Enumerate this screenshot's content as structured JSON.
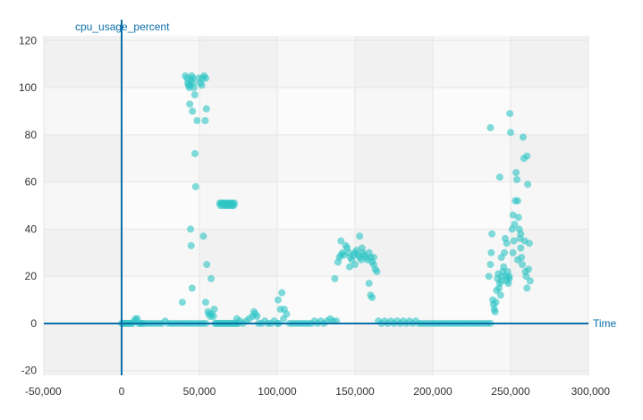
{
  "chart_data": {
    "type": "scatter",
    "title": "",
    "xlabel": "Time",
    "ylabel": "cpu_usage_percent",
    "xlim": [
      -50000,
      300000
    ],
    "ylim": [
      -22,
      122
    ],
    "xticks": [
      -50000,
      0,
      50000,
      100000,
      150000,
      200000,
      250000,
      300000
    ],
    "xtick_labels": [
      "-50,000",
      "0",
      "50,000",
      "100,000",
      "150,000",
      "200,000",
      "250,000",
      "300,000"
    ],
    "yticks": [
      -20,
      0,
      20,
      40,
      60,
      80,
      100,
      120
    ],
    "ytick_labels": [
      "-20",
      "0",
      "20",
      "40",
      "60",
      "80",
      "100",
      "120"
    ],
    "grid": true,
    "legend": "none",
    "series": [
      {
        "marker_color": "#2ec4c4",
        "points": [
          [
            0,
            0
          ],
          [
            1000,
            0
          ],
          [
            2000,
            0
          ],
          [
            3000,
            0
          ],
          [
            4000,
            0
          ],
          [
            5000,
            0
          ],
          [
            6000,
            0
          ],
          [
            7000,
            0
          ],
          [
            8000,
            1
          ],
          [
            9000,
            2
          ],
          [
            10000,
            2
          ],
          [
            11000,
            0
          ],
          [
            12000,
            0
          ],
          [
            13000,
            0
          ],
          [
            14000,
            0
          ],
          [
            16000,
            0
          ],
          [
            18000,
            0
          ],
          [
            20000,
            0
          ],
          [
            22000,
            0
          ],
          [
            24000,
            0
          ],
          [
            26000,
            0
          ],
          [
            28000,
            1
          ],
          [
            30000,
            0
          ],
          [
            32000,
            0
          ],
          [
            34000,
            0
          ],
          [
            36000,
            0
          ],
          [
            38000,
            0
          ],
          [
            40000,
            0
          ],
          [
            42000,
            0
          ],
          [
            44000,
            0
          ],
          [
            46000,
            0
          ],
          [
            48000,
            0
          ],
          [
            50000,
            0
          ],
          [
            52000,
            0
          ],
          [
            54000,
            0
          ],
          [
            39000,
            9
          ],
          [
            41000,
            105
          ],
          [
            42000,
            104
          ],
          [
            42500,
            102
          ],
          [
            43000,
            101
          ],
          [
            43500,
            100
          ],
          [
            44000,
            101
          ],
          [
            44500,
            103
          ],
          [
            45000,
            105
          ],
          [
            45500,
            104
          ],
          [
            46000,
            102
          ],
          [
            46500,
            100
          ],
          [
            47000,
            97
          ],
          [
            43800,
            93
          ],
          [
            45500,
            90
          ],
          [
            44300,
            40
          ],
          [
            44700,
            33
          ],
          [
            45300,
            15
          ],
          [
            47200,
            72
          ],
          [
            47600,
            58
          ],
          [
            48500,
            86
          ],
          [
            49500,
            104
          ],
          [
            50500,
            102
          ],
          [
            51500,
            101
          ],
          [
            52000,
            104
          ],
          [
            53000,
            105
          ],
          [
            54000,
            104
          ],
          [
            54500,
            91
          ],
          [
            53700,
            86
          ],
          [
            52500,
            37
          ],
          [
            54700,
            25
          ],
          [
            55500,
            5
          ],
          [
            56000,
            4
          ],
          [
            57000,
            3
          ],
          [
            58000,
            4
          ],
          [
            59000,
            3
          ],
          [
            57500,
            19
          ],
          [
            59500,
            6
          ],
          [
            54000,
            9
          ],
          [
            63000,
            51
          ],
          [
            63500,
            50
          ],
          [
            64000,
            51
          ],
          [
            64500,
            51
          ],
          [
            65000,
            50
          ],
          [
            65500,
            51
          ],
          [
            66000,
            51
          ],
          [
            66500,
            50
          ],
          [
            67000,
            51
          ],
          [
            67500,
            50
          ],
          [
            68000,
            51
          ],
          [
            68500,
            51
          ],
          [
            69000,
            50
          ],
          [
            69500,
            51
          ],
          [
            70000,
            50
          ],
          [
            70500,
            51
          ],
          [
            71000,
            50
          ],
          [
            71500,
            51
          ],
          [
            72000,
            50
          ],
          [
            72500,
            51
          ],
          [
            60000,
            0
          ],
          [
            61000,
            0
          ],
          [
            62000,
            0
          ],
          [
            63000,
            0
          ],
          [
            64000,
            0
          ],
          [
            65000,
            0
          ],
          [
            66000,
            0
          ],
          [
            67000,
            0
          ],
          [
            68000,
            0
          ],
          [
            69000,
            0
          ],
          [
            70000,
            0
          ],
          [
            71000,
            0
          ],
          [
            72000,
            0
          ],
          [
            73000,
            0
          ],
          [
            74000,
            0
          ],
          [
            75000,
            0
          ],
          [
            74000,
            2
          ],
          [
            76000,
            1
          ],
          [
            78000,
            0
          ],
          [
            80000,
            1
          ],
          [
            82000,
            2
          ],
          [
            84000,
            3
          ],
          [
            85000,
            5
          ],
          [
            86000,
            4
          ],
          [
            87000,
            3
          ],
          [
            88000,
            0
          ],
          [
            90000,
            0
          ],
          [
            92000,
            1
          ],
          [
            94000,
            0
          ],
          [
            96000,
            0
          ],
          [
            98000,
            1
          ],
          [
            100000,
            0
          ],
          [
            101000,
            0
          ],
          [
            102000,
            6
          ],
          [
            104000,
            2
          ],
          [
            106000,
            4
          ],
          [
            108000,
            0
          ],
          [
            110000,
            0
          ],
          [
            112000,
            0
          ],
          [
            114000,
            0
          ],
          [
            116000,
            0
          ],
          [
            118000,
            0
          ],
          [
            120000,
            0
          ],
          [
            122000,
            0
          ],
          [
            124000,
            1
          ],
          [
            126000,
            0
          ],
          [
            128000,
            1
          ],
          [
            130000,
            0
          ],
          [
            132000,
            1
          ],
          [
            134000,
            2
          ],
          [
            136000,
            1
          ],
          [
            138000,
            1
          ],
          [
            100500,
            10
          ],
          [
            103000,
            13
          ],
          [
            104500,
            6
          ],
          [
            137000,
            19
          ],
          [
            139000,
            26
          ],
          [
            140000,
            28
          ],
          [
            141000,
            29
          ],
          [
            142000,
            30
          ],
          [
            143000,
            29
          ],
          [
            144000,
            33
          ],
          [
            145000,
            32
          ],
          [
            146000,
            30
          ],
          [
            147000,
            28
          ],
          [
            148000,
            27
          ],
          [
            149000,
            29
          ],
          [
            150000,
            30
          ],
          [
            151000,
            31
          ],
          [
            152000,
            29
          ],
          [
            153000,
            28
          ],
          [
            154000,
            27
          ],
          [
            155000,
            30
          ],
          [
            156000,
            29
          ],
          [
            157000,
            28
          ],
          [
            158000,
            27
          ],
          [
            159000,
            30
          ],
          [
            160000,
            28
          ],
          [
            161000,
            26
          ],
          [
            162000,
            25
          ],
          [
            163000,
            23
          ],
          [
            164000,
            22
          ],
          [
            141000,
            35
          ],
          [
            153000,
            37
          ],
          [
            154500,
            32
          ],
          [
            159000,
            17
          ],
          [
            160000,
            12
          ],
          [
            161000,
            11
          ],
          [
            162000,
            28
          ],
          [
            150000,
            25
          ],
          [
            146500,
            24
          ],
          [
            165000,
            1
          ],
          [
            167000,
            0
          ],
          [
            169000,
            1
          ],
          [
            171000,
            0
          ],
          [
            173000,
            1
          ],
          [
            175000,
            0
          ],
          [
            177000,
            1
          ],
          [
            179000,
            0
          ],
          [
            181000,
            1
          ],
          [
            183000,
            0
          ],
          [
            185000,
            1
          ],
          [
            187000,
            0
          ],
          [
            189000,
            1
          ],
          [
            191000,
            0
          ],
          [
            193000,
            0
          ],
          [
            195000,
            0
          ],
          [
            197000,
            0
          ],
          [
            199000,
            0
          ],
          [
            201000,
            0
          ],
          [
            203000,
            0
          ],
          [
            205000,
            0
          ],
          [
            207000,
            0
          ],
          [
            209000,
            0
          ],
          [
            211000,
            0
          ],
          [
            213000,
            0
          ],
          [
            215000,
            0
          ],
          [
            217000,
            0
          ],
          [
            219000,
            0
          ],
          [
            221000,
            0
          ],
          [
            223000,
            0
          ],
          [
            225000,
            0
          ],
          [
            227000,
            0
          ],
          [
            229000,
            0
          ],
          [
            231000,
            0
          ],
          [
            233000,
            0
          ],
          [
            235000,
            0
          ],
          [
            237000,
            0
          ],
          [
            236000,
            20
          ],
          [
            237000,
            25
          ],
          [
            237500,
            30
          ],
          [
            238000,
            38
          ],
          [
            238500,
            10
          ],
          [
            239000,
            8
          ],
          [
            239500,
            6
          ],
          [
            240000,
            5
          ],
          [
            240500,
            9
          ],
          [
            241000,
            14
          ],
          [
            241500,
            19
          ],
          [
            242000,
            21
          ],
          [
            242500,
            15
          ],
          [
            243000,
            17
          ],
          [
            243500,
            12
          ],
          [
            244000,
            18
          ],
          [
            244500,
            20
          ],
          [
            245000,
            22
          ],
          [
            245500,
            24
          ],
          [
            246000,
            30
          ],
          [
            246500,
            36
          ],
          [
            247000,
            20
          ],
          [
            247500,
            18
          ],
          [
            248000,
            22
          ],
          [
            248500,
            17
          ],
          [
            249000,
            19
          ],
          [
            249500,
            89
          ],
          [
            250000,
            81
          ],
          [
            243000,
            62
          ],
          [
            237000,
            83
          ],
          [
            251000,
            40
          ],
          [
            251500,
            30
          ],
          [
            252000,
            35
          ],
          [
            252500,
            42
          ],
          [
            253000,
            52
          ],
          [
            253500,
            64
          ],
          [
            254000,
            61
          ],
          [
            254500,
            52
          ],
          [
            255000,
            45
          ],
          [
            255500,
            40
          ],
          [
            256000,
            36
          ],
          [
            256500,
            32
          ],
          [
            257000,
            28
          ],
          [
            257500,
            25
          ],
          [
            258000,
            79
          ],
          [
            258500,
            70
          ],
          [
            259000,
            35
          ],
          [
            259500,
            22
          ],
          [
            260000,
            20
          ],
          [
            260500,
            71
          ],
          [
            261000,
            59
          ],
          [
            261500,
            23
          ],
          [
            262000,
            34
          ],
          [
            262500,
            18
          ],
          [
            260500,
            15
          ],
          [
            249000,
            20
          ],
          [
            244000,
            28
          ],
          [
            247500,
            34
          ],
          [
            251500,
            46
          ],
          [
            254500,
            27
          ],
          [
            256500,
            38
          ]
        ]
      }
    ]
  }
}
